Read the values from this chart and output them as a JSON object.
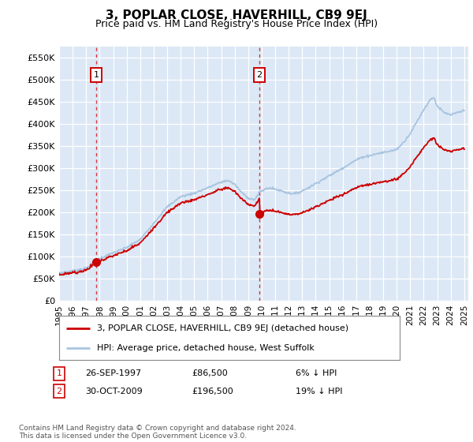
{
  "title": "3, POPLAR CLOSE, HAVERHILL, CB9 9EJ",
  "subtitle": "Price paid vs. HM Land Registry's House Price Index (HPI)",
  "legend_line1": "3, POPLAR CLOSE, HAVERHILL, CB9 9EJ (detached house)",
  "legend_line2": "HPI: Average price, detached house, West Suffolk",
  "annotation1_date": "26-SEP-1997",
  "annotation1_price": 86500,
  "annotation1_note": "6% ↓ HPI",
  "annotation2_date": "30-OCT-2009",
  "annotation2_price": 196500,
  "annotation2_note": "19% ↓ HPI",
  "footer": "Contains HM Land Registry data © Crown copyright and database right 2024.\nThis data is licensed under the Open Government Licence v3.0.",
  "hpi_color": "#a8c4e0",
  "price_color": "#cc0000",
  "plot_bg_color": "#dce8f5",
  "ylim": [
    0,
    575000
  ],
  "yticks": [
    0,
    50000,
    100000,
    150000,
    200000,
    250000,
    300000,
    350000,
    400000,
    450000,
    500000,
    550000
  ],
  "sale1_year": 1997.75,
  "sale1_price": 86500,
  "sale2_year": 2009.83,
  "sale2_price": 196500,
  "year_start": 1995,
  "year_end": 2025
}
